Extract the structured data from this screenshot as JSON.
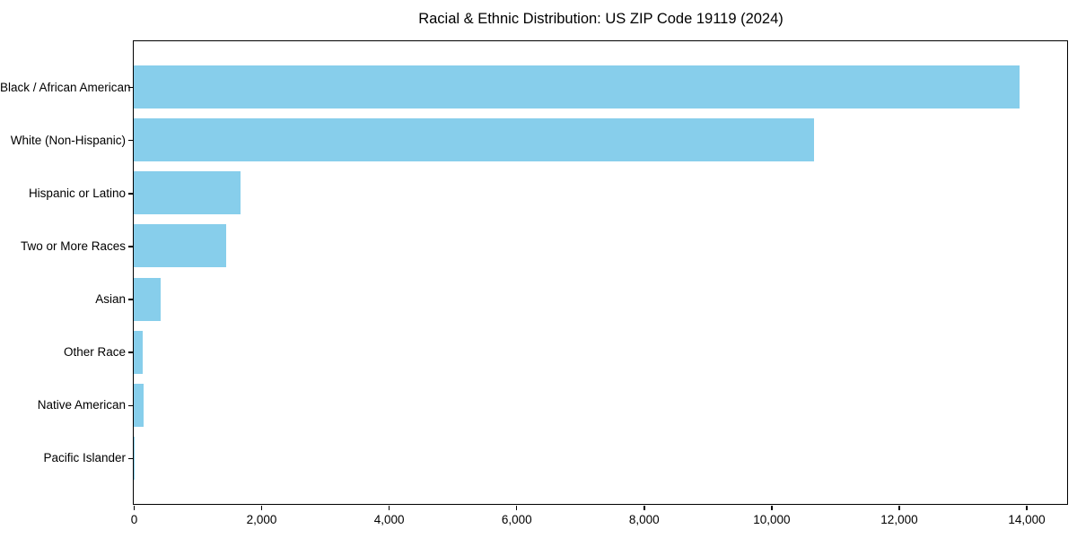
{
  "chart_data": {
    "type": "bar",
    "orientation": "horizontal",
    "title": "Racial & Ethnic Distribution: US ZIP Code 19119 (2024)",
    "categories": [
      "Black / African American",
      "White (Non-Hispanic)",
      "Hispanic or Latino",
      "Two or More Races",
      "Asian",
      "Other Race",
      "Native American",
      "Pacific Islander"
    ],
    "values": [
      13900,
      10670,
      1680,
      1450,
      425,
      140,
      150,
      15
    ],
    "bar_color": "#87CEEB",
    "text_color": "#000000",
    "spine_color": "#000000",
    "background_color": "#ffffff",
    "xlabel": "",
    "ylabel": "",
    "xlim": [
      0,
      14640
    ],
    "x_ticks": [
      0,
      2000,
      4000,
      6000,
      8000,
      10000,
      12000,
      14000
    ],
    "x_tick_labels": [
      "0",
      "2,000",
      "4,000",
      "6,000",
      "8,000",
      "10,000",
      "12,000",
      "14,000"
    ],
    "grid": false,
    "legend_position": "none"
  }
}
